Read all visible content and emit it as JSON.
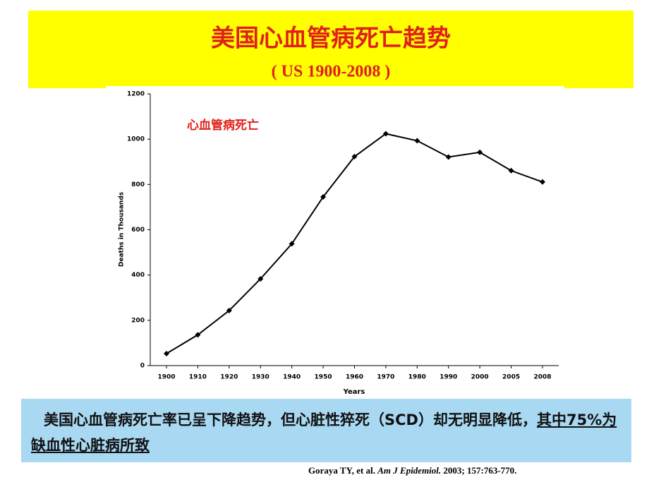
{
  "header": {
    "title": "美国心血管病死亡趋势",
    "subtitle": "( US 1900-2008 )"
  },
  "chart_data": {
    "type": "line",
    "annotation": "心血管病死亡",
    "x_label": "Years",
    "y_label": "Deaths in Thousands",
    "categories": [
      "1900",
      "1910",
      "1920",
      "1930",
      "1940",
      "1950",
      "1960",
      "1970",
      "1980",
      "1990",
      "2000",
      "2005",
      "2008"
    ],
    "series": [
      {
        "color": "#000000",
        "values": [
          53,
          136,
          243,
          383,
          538,
          745,
          923,
          1024,
          993,
          921,
          942,
          861,
          811
        ]
      }
    ],
    "ylim": [
      0,
      1200
    ],
    "yticks": [
      0,
      200,
      400,
      600,
      800,
      1000,
      1200
    ]
  },
  "caption": {
    "text": "美国心血管病死亡率已呈下降趋势，但心脏性猝死（SCD）却无明显降低，",
    "underlined": "其中75%为缺血性心脏病所致"
  },
  "citation": {
    "authors": "Goraya TY, et al.",
    "journal": "Am J Epidemiol.",
    "details": "2003; 157:763-770."
  }
}
